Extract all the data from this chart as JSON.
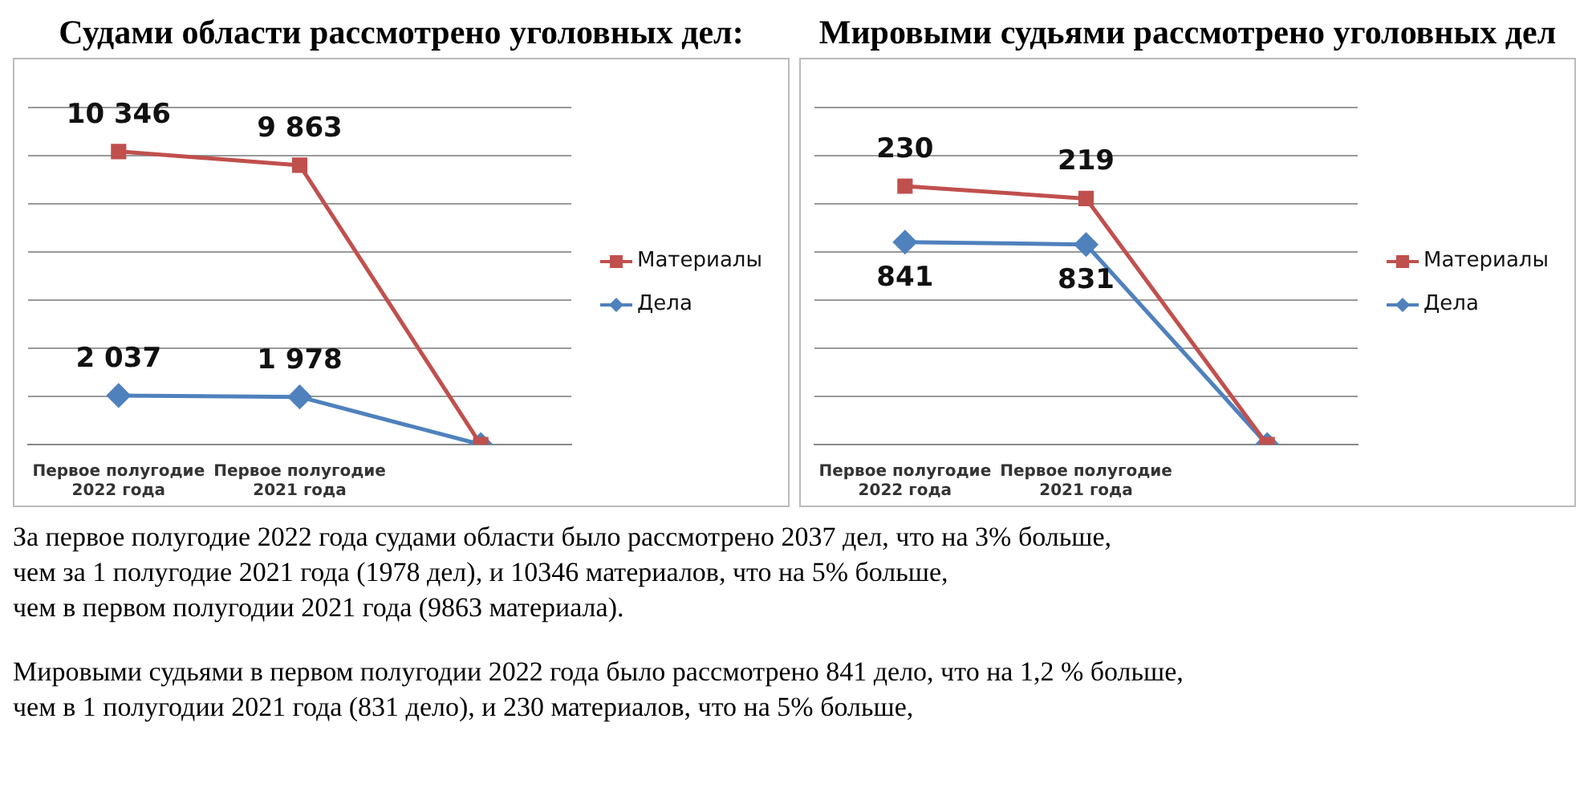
{
  "chart_data": [
    {
      "type": "line",
      "title": "Судами области рассмотрено уголовных дел:",
      "categories": [
        "Первое полугодие 2022 года",
        "Первое полугодие 2021 года",
        null
      ],
      "series": [
        {
          "name": "Материалы",
          "color": "#c0504d",
          "marker": "square",
          "axis": "y2",
          "values": [
            10346,
            9863,
            0
          ],
          "value_labels": [
            "10 346",
            "9 863",
            null
          ]
        },
        {
          "name": "Дела",
          "color": "#4f81bd",
          "marker": "diamond",
          "values": [
            2037,
            1978,
            0
          ],
          "value_labels": [
            "2 037",
            "1 978",
            null
          ]
        }
      ],
      "ylim": [
        0,
        14000
      ],
      "yticks": [
        {
          "value": 0,
          "label": null
        },
        {
          "value": 2000,
          "label": null
        },
        {
          "value": 4000,
          "label": null
        },
        {
          "value": 6000,
          "label": null
        },
        {
          "value": 8000,
          "label": null
        },
        {
          "value": 10000,
          "label": null
        },
        {
          "value": 12000,
          "label": null
        },
        {
          "value": 14000,
          "label": null
        }
      ],
      "y2lim": [
        0,
        11900
      ],
      "tick_labels": "x",
      "grid": "y",
      "legend": "right",
      "annotations": [
        "За первое полугодие 2022 года судами области было рассмотрено 2037 дел, что на 3% больше,",
        "чем за 1 полугодие 2021 года (1978 дел), и  10346 материалов, что на 5% больше,",
        "чем в первом полугодии 2021 года (9863 материала)."
      ]
    },
    {
      "type": "line",
      "title": "Мировыми судьями рассмотрено уголовных дел",
      "categories": [
        "Первое полугодие 2022 года",
        "Первое полугодие 2021 года",
        null
      ],
      "series": [
        {
          "name": "Материалы",
          "color": "#c0504d",
          "marker": "square",
          "axis": "y2",
          "values": [
            230,
            219,
            0
          ],
          "value_labels": [
            "230",
            "219",
            null
          ]
        },
        {
          "name": "Дела",
          "color": "#4f81bd",
          "marker": "diamond",
          "values": [
            841,
            831,
            0
          ],
          "value_labels": [
            "841",
            "831",
            null
          ]
        }
      ],
      "ylim": [
        0,
        1400
      ],
      "yticks": [
        {
          "value": 0,
          "label": null
        },
        {
          "value": 200,
          "label": null
        },
        {
          "value": 400,
          "label": null
        },
        {
          "value": 600,
          "label": null
        },
        {
          "value": 800,
          "label": null
        },
        {
          "value": 1000,
          "label": null
        },
        {
          "value": 1200,
          "label": null
        },
        {
          "value": 1400,
          "label": null
        }
      ],
      "y2lim": [
        0,
        300
      ],
      "tick_labels": "x",
      "grid": "y",
      "legend": "right",
      "annotations": [
        "Мировыми судьями в первом полугодии 2022 года было рассмотрено 841 дело, что на 1,2 % больше,",
        "чем в 1 полугодии 2021 года (831 дело), и  230 материалов, что на 5% больше,"
      ]
    }
  ]
}
